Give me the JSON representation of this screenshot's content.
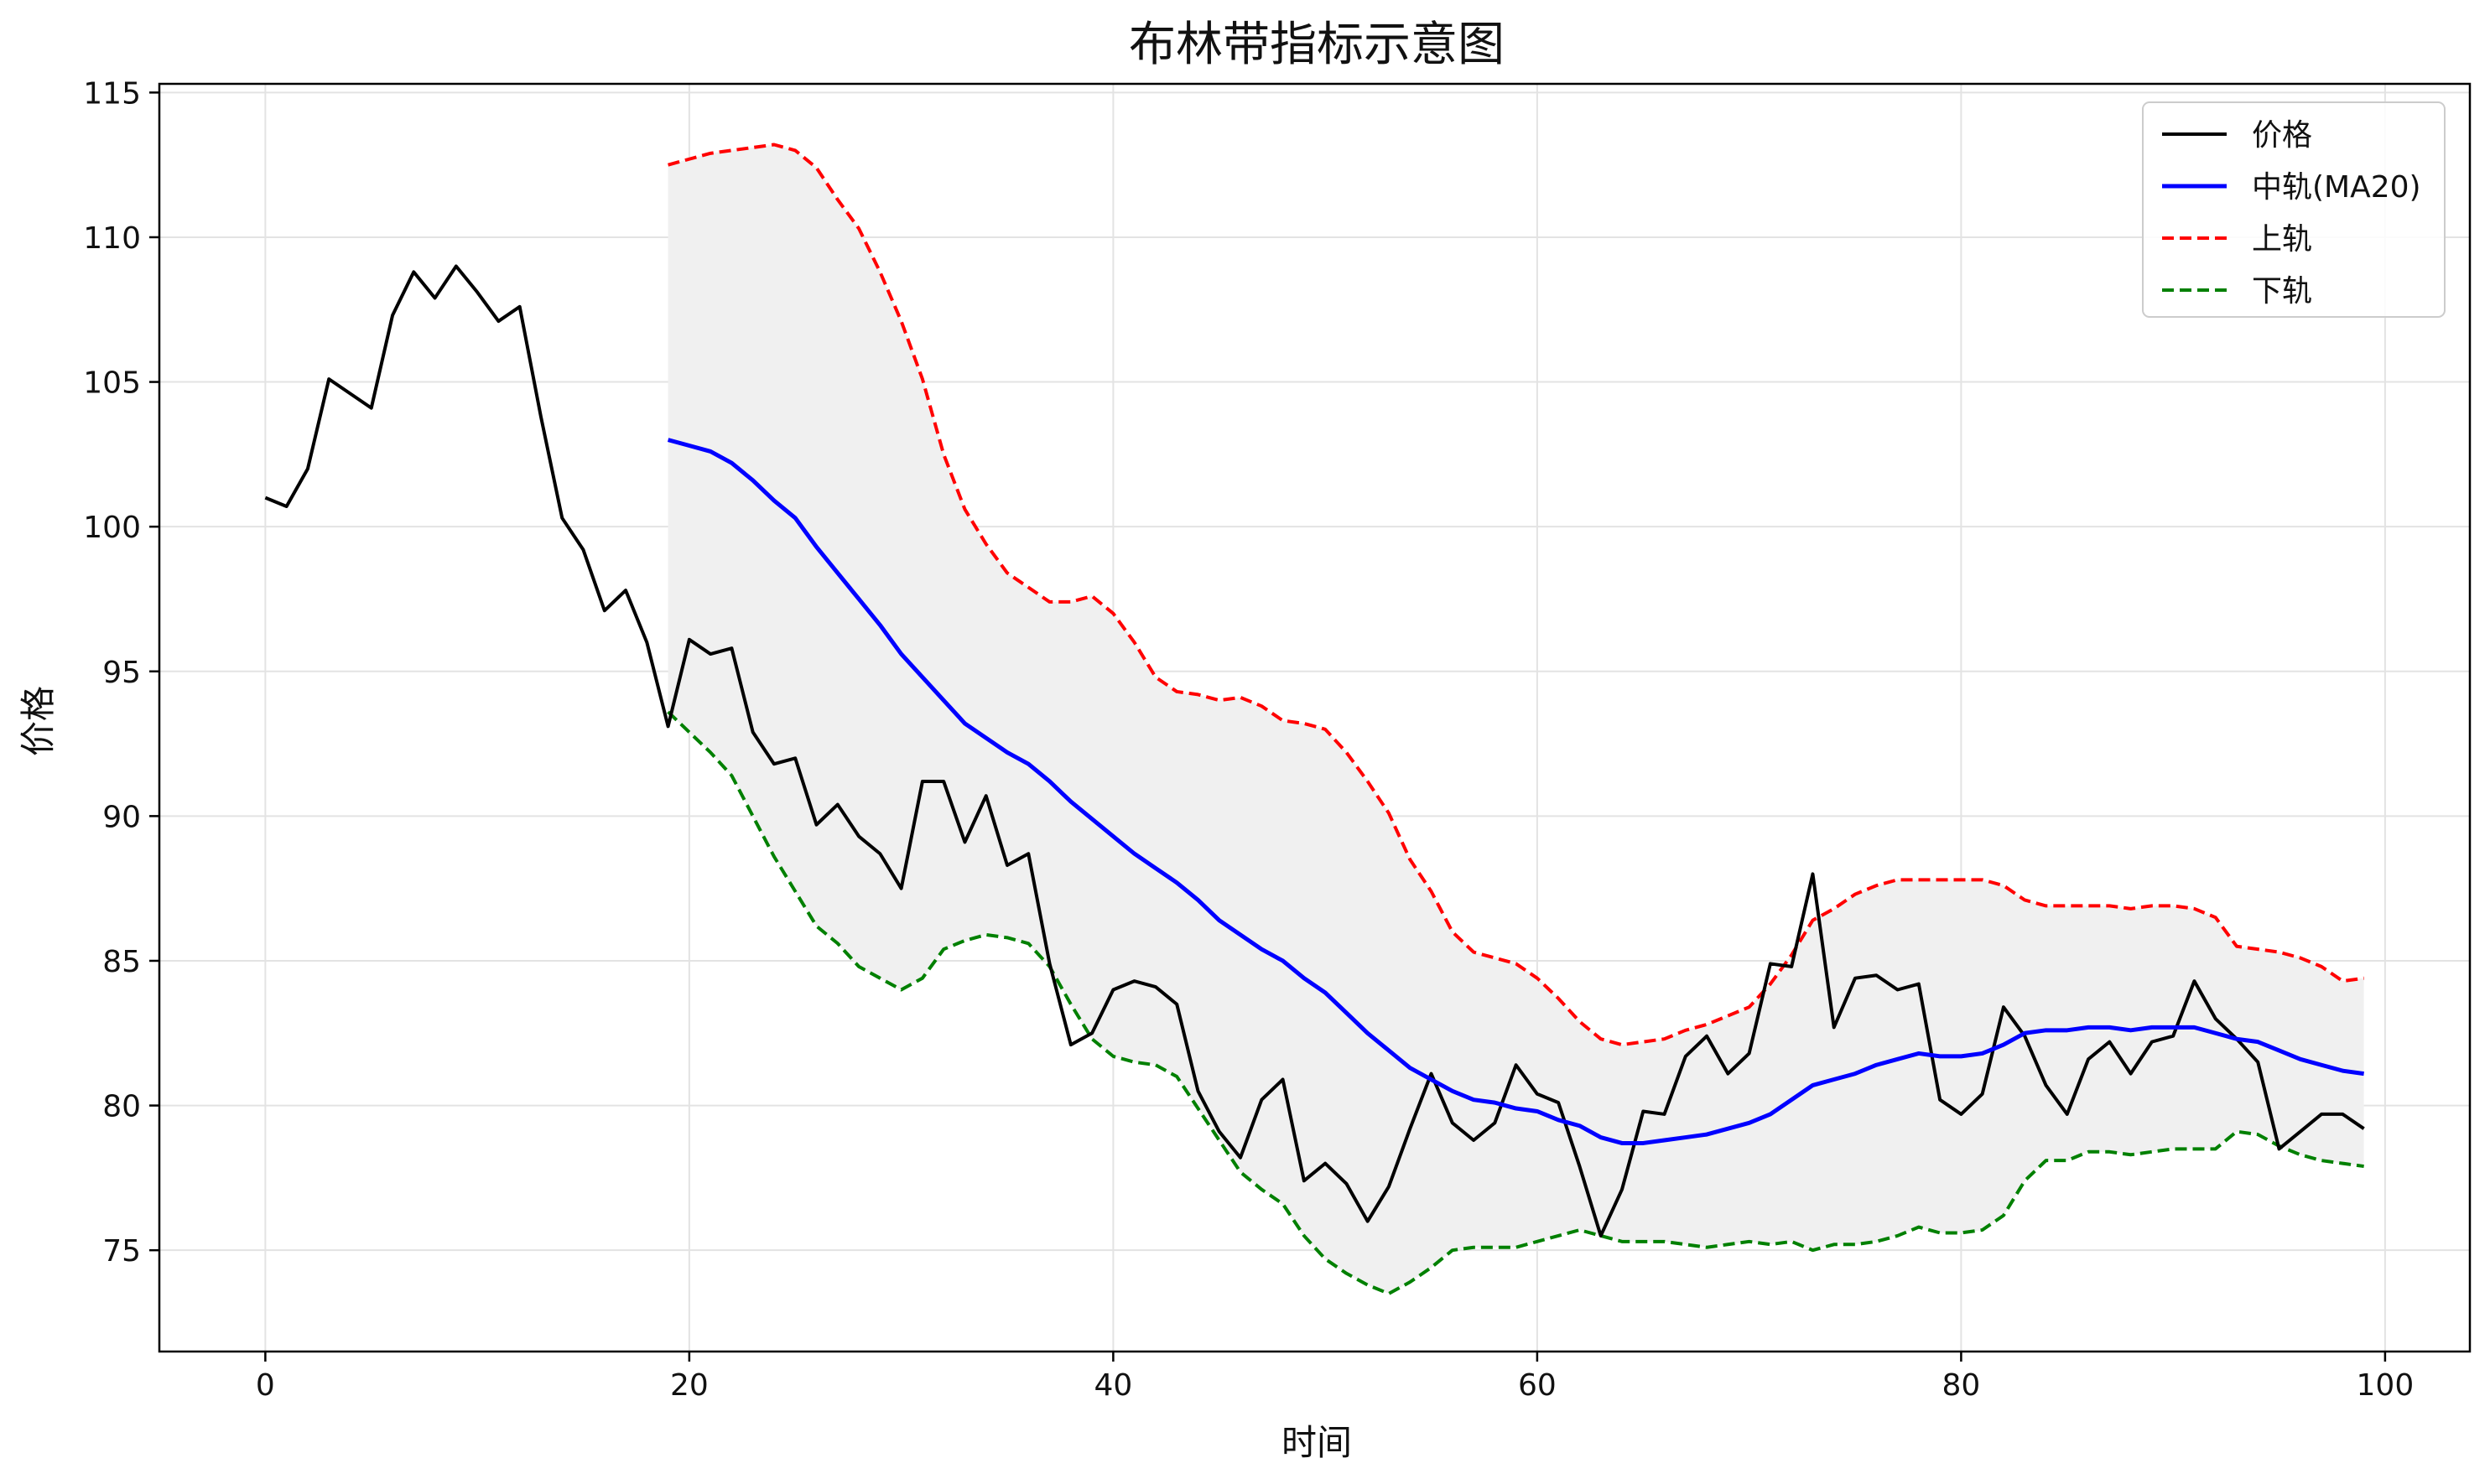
{
  "chart_data": {
    "type": "line",
    "title": "布林带指标示意图",
    "xlabel": "时间",
    "ylabel": "价格",
    "xlim": [
      -5,
      104
    ],
    "ylim": [
      71.5,
      115.3
    ],
    "x_ticks": [
      0,
      20,
      40,
      60,
      80,
      100
    ],
    "y_ticks": [
      75,
      80,
      85,
      90,
      95,
      100,
      105,
      110,
      115
    ],
    "grid": true,
    "legend_position": "top-right",
    "band_fill_color": "#f0f0f0",
    "series": [
      {
        "name": "价格",
        "color": "#000000",
        "style": "solid",
        "x_start": 0,
        "values": [
          101.0,
          100.7,
          102.0,
          105.1,
          104.6,
          104.1,
          107.3,
          108.8,
          107.9,
          109.0,
          108.1,
          107.1,
          107.6,
          103.8,
          100.3,
          99.2,
          97.1,
          97.8,
          96.0,
          93.1,
          96.1,
          95.6,
          95.8,
          92.9,
          91.8,
          92.0,
          89.7,
          90.4,
          89.3,
          88.7,
          87.5,
          91.2,
          91.2,
          89.1,
          90.7,
          88.3,
          88.7,
          84.9,
          82.1,
          82.5,
          84.0,
          84.3,
          84.1,
          83.5,
          80.5,
          79.1,
          78.2,
          80.2,
          80.9,
          77.4,
          78.0,
          77.3,
          76.0,
          77.2,
          79.2,
          81.1,
          79.4,
          78.8,
          79.4,
          81.4,
          80.4,
          80.1,
          77.9,
          75.5,
          77.1,
          79.8,
          79.7,
          81.7,
          82.4,
          81.1,
          81.8,
          84.9,
          84.8,
          88.0,
          82.7,
          84.4,
          84.5,
          84.0,
          84.2,
          80.2,
          79.7,
          80.4,
          83.4,
          82.4,
          80.7,
          79.7,
          81.6,
          82.2,
          81.1,
          82.2,
          82.4,
          84.3,
          83.0,
          82.3,
          81.5,
          78.5,
          79.1,
          79.7,
          79.7,
          79.2
        ]
      },
      {
        "name": "中轨(MA20)",
        "color": "#0000ff",
        "style": "solid",
        "x_start": 19,
        "values": [
          103.0,
          102.8,
          102.6,
          102.2,
          101.6,
          100.9,
          100.3,
          99.3,
          98.4,
          97.5,
          96.6,
          95.6,
          94.8,
          94.0,
          93.2,
          92.7,
          92.2,
          91.8,
          91.2,
          90.5,
          89.9,
          89.3,
          88.7,
          88.2,
          87.7,
          87.1,
          86.4,
          85.9,
          85.4,
          85.0,
          84.4,
          83.9,
          83.2,
          82.5,
          81.9,
          81.3,
          80.9,
          80.5,
          80.2,
          80.1,
          79.9,
          79.8,
          79.5,
          79.3,
          78.9,
          78.7,
          78.7,
          78.8,
          78.9,
          79.0,
          79.2,
          79.4,
          79.7,
          80.2,
          80.7,
          80.9,
          81.1,
          81.4,
          81.6,
          81.8,
          81.7,
          81.7,
          81.8,
          82.1,
          82.5,
          82.6,
          82.6,
          82.7,
          82.7,
          82.6,
          82.7,
          82.7,
          82.7,
          82.5,
          82.3,
          82.2,
          81.9,
          81.6,
          81.4,
          81.2,
          81.1
        ]
      },
      {
        "name": "上轨",
        "color": "#ff0000",
        "style": "dashed",
        "x_start": 19,
        "values": [
          112.5,
          112.7,
          112.9,
          113.0,
          113.1,
          113.2,
          113.0,
          112.4,
          111.3,
          110.3,
          108.8,
          107.1,
          105.1,
          102.5,
          100.6,
          99.4,
          98.4,
          97.9,
          97.4,
          97.4,
          97.6,
          97.0,
          96.0,
          94.8,
          94.3,
          94.2,
          94.0,
          94.1,
          93.8,
          93.3,
          93.2,
          93.0,
          92.2,
          91.2,
          90.1,
          88.5,
          87.4,
          86.0,
          85.3,
          85.1,
          84.9,
          84.4,
          83.7,
          82.9,
          82.3,
          82.1,
          82.2,
          82.3,
          82.6,
          82.8,
          83.1,
          83.4,
          84.2,
          85.2,
          86.4,
          86.8,
          87.3,
          87.6,
          87.8,
          87.8,
          87.8,
          87.8,
          87.8,
          87.6,
          87.1,
          86.9,
          86.9,
          86.9,
          86.9,
          86.8,
          86.9,
          86.9,
          86.8,
          86.5,
          85.5,
          85.4,
          85.3,
          85.1,
          84.8,
          84.3,
          84.4
        ]
      },
      {
        "name": "下轨",
        "color": "#008000",
        "style": "dashed",
        "x_start": 19,
        "values": [
          93.6,
          92.9,
          92.2,
          91.4,
          90.0,
          88.6,
          87.4,
          86.2,
          85.6,
          84.8,
          84.4,
          84.0,
          84.4,
          85.4,
          85.7,
          85.9,
          85.8,
          85.6,
          84.8,
          83.5,
          82.3,
          81.7,
          81.5,
          81.4,
          81.0,
          79.9,
          78.8,
          77.7,
          77.1,
          76.6,
          75.5,
          74.7,
          74.2,
          73.8,
          73.5,
          73.9,
          74.4,
          75.0,
          75.1,
          75.1,
          75.1,
          75.3,
          75.5,
          75.7,
          75.5,
          75.3,
          75.3,
          75.3,
          75.2,
          75.1,
          75.2,
          75.3,
          75.2,
          75.3,
          75.0,
          75.2,
          75.2,
          75.3,
          75.5,
          75.8,
          75.6,
          75.6,
          75.7,
          76.2,
          77.4,
          78.1,
          78.1,
          78.4,
          78.4,
          78.3,
          78.4,
          78.5,
          78.5,
          78.5,
          79.1,
          79.0,
          78.6,
          78.3,
          78.1,
          78.0,
          77.9
        ]
      }
    ]
  }
}
